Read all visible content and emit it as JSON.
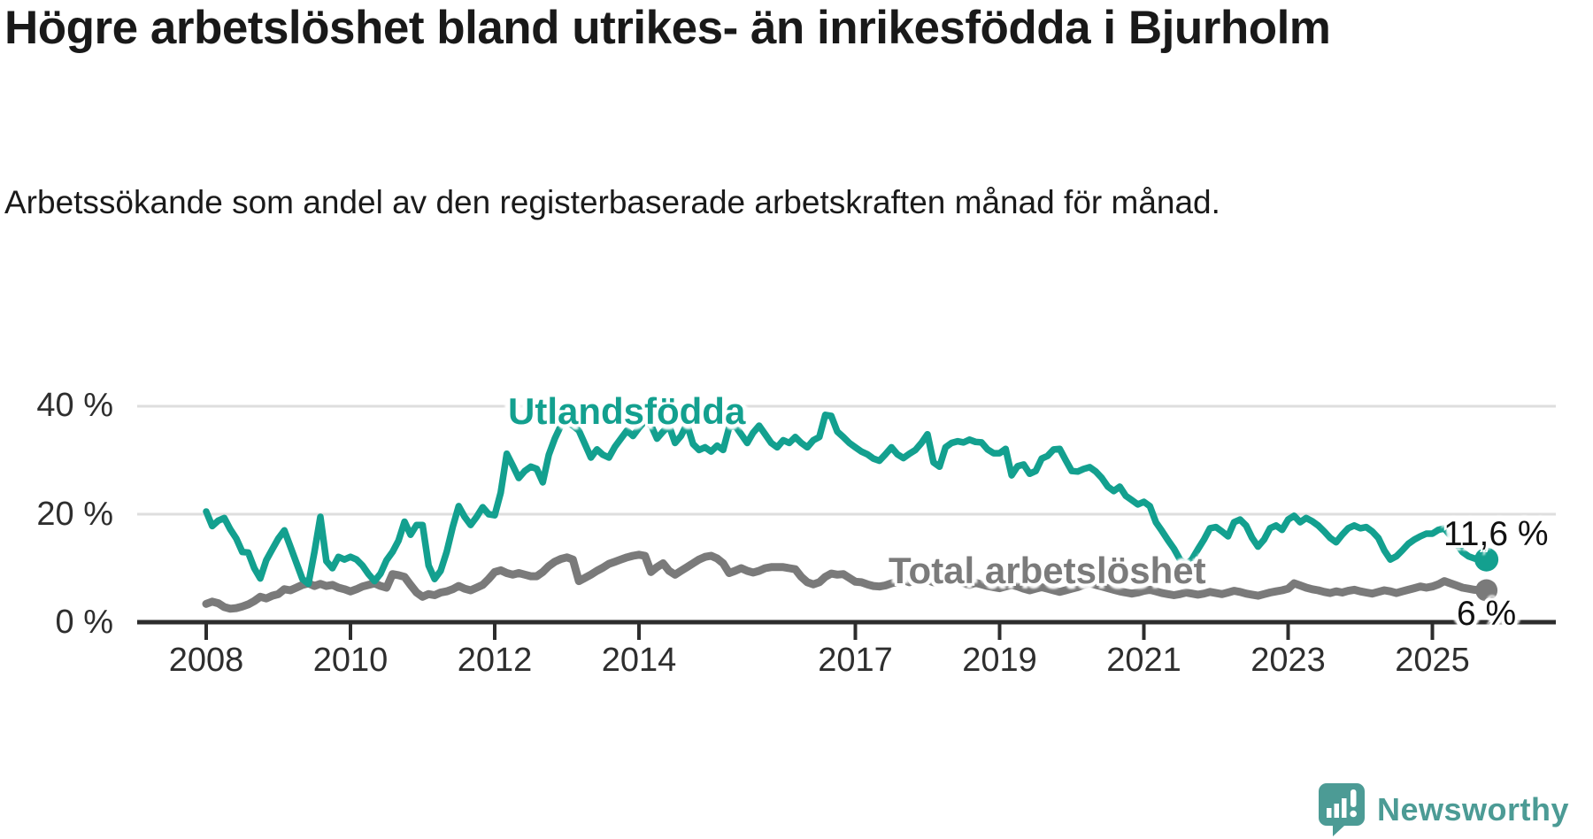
{
  "title": "Högre arbetslöshet bland utrikes- än inrikesfödda i Bjurholm",
  "subtitle": "Arbetssökande som andel av den registerbaserade arbetskraften månad för månad.",
  "colors": {
    "background": "#ffffff",
    "grid": "#dedede",
    "axis": "#2d2d2d",
    "axis_text": "#2e2e2e",
    "title_text": "#191919",
    "end_label_text": "#111111"
  },
  "branding": {
    "logo_text": "Newsworthy",
    "logo_color": "#4C9B95",
    "icon": "newsworthy-speech-bubble-chart-icon"
  },
  "chart_data": {
    "type": "line",
    "title": "Högre arbetslöshet bland utrikes- än inrikesfödda i Bjurholm",
    "xlabel": "",
    "ylabel": "Arbetssökande som andel av den registerbaserade arbetskraften",
    "unit": "%",
    "frequency": "monthly",
    "start": "2008-01",
    "end": "2025-10",
    "grid": true,
    "x_axis": {
      "tick_years": [
        2008,
        2010,
        2012,
        2014,
        2017,
        2019,
        2021,
        2023,
        2025
      ]
    },
    "y_axis": {
      "tick_labels": [
        "0 %",
        "20 %",
        "40 %"
      ],
      "ticks_pct": [
        0,
        20,
        40
      ],
      "ylim": [
        0,
        42
      ]
    },
    "series": [
      {
        "name": "Total arbetslöshet",
        "color": "#7a7a7a",
        "label_color": "#7b7b7b",
        "end_label": "6 %",
        "end_value": 5.9,
        "values": [
          3.4,
          3.8,
          3.5,
          2.8,
          2.5,
          2.6,
          2.9,
          3.3,
          3.9,
          4.7,
          4.4,
          4.9,
          5.2,
          6.1,
          5.9,
          6.4,
          6.9,
          7.2,
          6.7,
          7.1,
          6.7,
          6.9,
          6.4,
          6.1,
          5.7,
          6.1,
          6.6,
          6.9,
          7.2,
          6.7,
          6.4,
          8.9,
          8.7,
          8.4,
          6.9,
          5.5,
          4.7,
          5.2,
          5.0,
          5.5,
          5.7,
          6.1,
          6.7,
          6.2,
          5.9,
          6.4,
          6.9,
          8.0,
          9.3,
          9.6,
          9.1,
          8.8,
          9.1,
          8.8,
          8.5,
          8.5,
          9.3,
          10.4,
          11.2,
          11.7,
          12.0,
          11.6,
          7.6,
          8.2,
          8.8,
          9.5,
          10.1,
          10.8,
          11.2,
          11.6,
          12.0,
          12.3,
          12.5,
          12.3,
          9.3,
          10.2,
          10.9,
          9.5,
          8.8,
          9.5,
          10.2,
          10.9,
          11.6,
          12.1,
          12.3,
          11.8,
          10.9,
          9.1,
          9.5,
          10.0,
          9.5,
          9.2,
          9.5,
          10.0,
          10.2,
          10.2,
          10.2,
          10.0,
          9.8,
          8.4,
          7.4,
          7.0,
          7.4,
          8.4,
          9.0,
          8.8,
          8.9,
          8.2,
          7.5,
          7.4,
          7.0,
          6.7,
          6.6,
          6.8,
          7.2,
          7.5,
          7.8,
          7.4,
          7.8,
          8.1,
          7.8,
          7.4,
          7.8,
          8.2,
          7.9,
          7.5,
          7.2,
          6.9,
          7.3,
          7.0,
          6.7,
          6.5,
          6.3,
          6.6,
          6.9,
          6.6,
          6.2,
          5.9,
          6.2,
          6.5,
          6.2,
          5.9,
          5.6,
          5.9,
          6.2,
          6.5,
          6.9,
          7.2,
          6.9,
          6.6,
          6.3,
          6.0,
          5.7,
          5.5,
          5.3,
          5.5,
          5.8,
          6.0,
          5.7,
          5.4,
          5.2,
          5.0,
          5.2,
          5.5,
          5.3,
          5.1,
          5.3,
          5.6,
          5.4,
          5.2,
          5.5,
          5.8,
          5.6,
          5.3,
          5.1,
          4.9,
          5.2,
          5.5,
          5.7,
          5.9,
          6.2,
          7.2,
          6.8,
          6.4,
          6.1,
          5.9,
          5.6,
          5.4,
          5.7,
          5.5,
          5.8,
          6.0,
          5.7,
          5.5,
          5.3,
          5.6,
          5.9,
          5.7,
          5.4,
          5.7,
          6.0,
          6.3,
          6.6,
          6.4,
          6.6,
          7.0,
          7.6,
          7.2,
          6.8,
          6.4,
          6.2,
          6.0,
          5.9,
          5.9
        ]
      },
      {
        "name": "Utlandsfödda",
        "color": "#13A08F",
        "label_color": "#13A08F",
        "end_label": "11,6 %",
        "end_value": 11.6,
        "values": [
          20.5,
          17.8,
          18.8,
          19.3,
          17.2,
          15.5,
          13.0,
          12.9,
          10.0,
          8.1,
          11.5,
          13.5,
          15.5,
          17.0,
          14.0,
          11.0,
          8.0,
          7.1,
          13.0,
          19.5,
          11.3,
          10.0,
          12.1,
          11.6,
          12.1,
          11.6,
          10.5,
          8.9,
          7.6,
          9.0,
          11.5,
          13.0,
          15.1,
          18.6,
          16.2,
          18.0,
          18.0,
          10.5,
          8.0,
          9.5,
          13.0,
          17.6,
          21.5,
          19.5,
          18.0,
          19.5,
          21.3,
          20.0,
          19.8,
          24.0,
          31.2,
          29.0,
          26.7,
          28.0,
          28.8,
          28.4,
          25.9,
          31.0,
          34.0,
          36.4,
          37.0,
          36.4,
          35.5,
          33.0,
          30.5,
          32.0,
          31.0,
          30.5,
          32.5,
          34.0,
          35.5,
          34.5,
          36.0,
          37.3,
          36.5,
          34.0,
          35.3,
          36.4,
          33.2,
          34.5,
          36.7,
          33.0,
          31.9,
          32.4,
          31.6,
          32.7,
          31.9,
          36.1,
          36.4,
          34.8,
          33.2,
          35.1,
          36.4,
          34.8,
          33.2,
          32.4,
          33.7,
          33.2,
          34.3,
          33.2,
          32.4,
          33.7,
          34.3,
          38.4,
          38.2,
          35.3,
          34.3,
          33.2,
          32.4,
          31.6,
          31.1,
          30.3,
          29.9,
          31.1,
          32.4,
          31.1,
          30.4,
          31.2,
          31.9,
          33.2,
          34.8,
          29.6,
          28.8,
          32.4,
          33.2,
          33.5,
          33.3,
          33.8,
          33.4,
          33.3,
          32.0,
          31.3,
          31.3,
          32.1,
          27.2,
          28.9,
          29.2,
          27.5,
          28.0,
          30.3,
          30.8,
          32.0,
          32.1,
          30.0,
          28.0,
          27.9,
          28.4,
          28.7,
          27.9,
          26.7,
          25.1,
          24.3,
          25.1,
          23.4,
          22.6,
          21.8,
          22.3,
          21.5,
          18.5,
          16.9,
          15.2,
          13.6,
          11.6,
          10.7,
          11.6,
          13.5,
          15.3,
          17.4,
          17.6,
          16.8,
          15.9,
          18.5,
          19.0,
          17.9,
          15.6,
          14.0,
          15.3,
          17.4,
          17.9,
          17.1,
          19.0,
          19.7,
          18.5,
          19.3,
          18.7,
          17.9,
          16.8,
          15.6,
          14.8,
          16.2,
          17.4,
          17.9,
          17.4,
          17.6,
          16.8,
          15.6,
          13.3,
          11.6,
          12.2,
          13.3,
          14.5,
          15.3,
          15.9,
          16.4,
          16.4,
          17.1,
          17.4,
          16.0,
          14.5,
          13.0,
          12.2,
          11.8,
          11.6,
          11.6
        ]
      }
    ]
  }
}
